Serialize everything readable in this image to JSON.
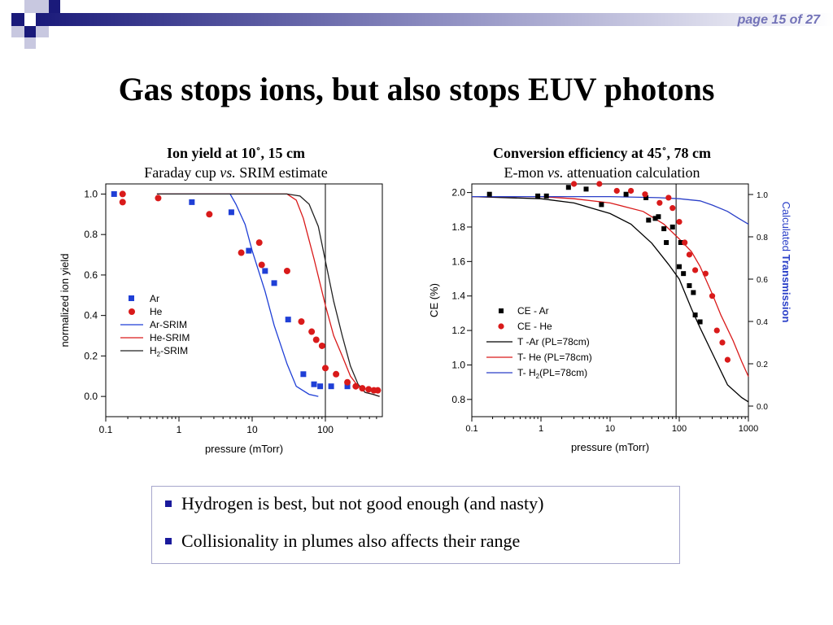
{
  "header": {
    "page_label": "page 15 of 27"
  },
  "title": "Gas stops ions, but also stops EUV photons",
  "left_caption": {
    "line1": "Ion yield at 10˚, 15 cm",
    "line2_a": "Faraday cup ",
    "line2_vs": "vs.",
    "line2_b": " SRIM estimate"
  },
  "right_caption": {
    "line1": "Conversion efficiency at 45˚, 78 cm",
    "line2_a": "E-mon ",
    "line2_vs": "vs.",
    "line2_b": " attenuation calculation"
  },
  "bullets": [
    "Hydrogen is best, but not good enough (and nasty)",
    "Collisionality in plumes also affects their range"
  ],
  "colors": {
    "ar": "#1f3fd6",
    "he": "#d91a1a",
    "h2": "#222222",
    "ar_he_marker_black": "#000000",
    "transmission": "#2a3fc8",
    "deco_dark": "#1a1a7a",
    "deco_light": "#a6a6cc"
  },
  "chart_data": [
    {
      "type": "scatter",
      "xlabel": "pressure (mTorr)",
      "ylabel": "normalized ion yield",
      "xscale": "log",
      "xlim": [
        0.1,
        600
      ],
      "ylim": [
        -0.1,
        1.05
      ],
      "xticks": [
        0.1,
        1,
        10,
        100
      ],
      "xticklabels": [
        "0.1",
        "1",
        "10",
        "100"
      ],
      "yticks": [
        0.0,
        0.2,
        0.4,
        0.6,
        0.8,
        1.0
      ],
      "yticklabels": [
        "0.0",
        "0.2",
        "0.4",
        "0.6",
        "0.8",
        "1.0"
      ],
      "vline": 100,
      "legend_position": "lower-left",
      "series": [
        {
          "name": "Ar",
          "kind": "square",
          "color": "#1f3fd6",
          "x": [
            0.13,
            1.5,
            5.2,
            9.0,
            15,
            20,
            31,
            50,
            70,
            85,
            120,
            200
          ],
          "y": [
            1.0,
            0.96,
            0.91,
            0.72,
            0.62,
            0.56,
            0.38,
            0.11,
            0.06,
            0.05,
            0.05,
            0.05
          ]
        },
        {
          "name": "He",
          "kind": "circle",
          "color": "#d91a1a",
          "x": [
            0.17,
            0.17,
            0.52,
            2.6,
            7.1,
            12.5,
            13.5,
            30,
            47,
            65,
            75,
            90,
            100,
            140,
            200,
            260,
            320,
            390,
            460,
            520
          ],
          "y": [
            1.0,
            0.96,
            0.98,
            0.9,
            0.71,
            0.76,
            0.65,
            0.62,
            0.37,
            0.32,
            0.28,
            0.25,
            0.14,
            0.11,
            0.07,
            0.05,
            0.04,
            0.035,
            0.03,
            0.03
          ]
        },
        {
          "name": "Ar-SRIM",
          "kind": "line",
          "color": "#1f3fd6",
          "x": [
            0.5,
            5,
            6,
            8,
            10,
            15,
            20,
            30,
            40,
            60,
            80
          ],
          "y": [
            1.0,
            1.0,
            0.95,
            0.85,
            0.72,
            0.52,
            0.35,
            0.16,
            0.05,
            0.01,
            0.0
          ]
        },
        {
          "name": "He-SRIM",
          "kind": "line",
          "color": "#d91a1a",
          "x": [
            0.5,
            30,
            40,
            50,
            70,
            100,
            130,
            170,
            220,
            280,
            350,
            450,
            550
          ],
          "y": [
            1.0,
            1.0,
            0.97,
            0.88,
            0.68,
            0.45,
            0.3,
            0.2,
            0.1,
            0.05,
            0.02,
            0.01,
            0.0
          ]
        },
        {
          "name": "H2-SRIM",
          "kind": "line",
          "color": "#222222",
          "x": [
            0.5,
            30,
            45,
            60,
            80,
            100,
            130,
            170,
            220,
            280,
            350,
            450,
            550
          ],
          "y": [
            1.0,
            1.0,
            0.99,
            0.95,
            0.84,
            0.67,
            0.47,
            0.3,
            0.15,
            0.06,
            0.02,
            0.01,
            0.0
          ]
        }
      ],
      "legend_labels": [
        "Ar",
        "He",
        "Ar-SRIM",
        "He-SRIM",
        "H",
        "2",
        "-SRIM"
      ]
    },
    {
      "type": "scatter",
      "xlabel": "pressure (mTorr)",
      "ylabel": "CE (%)",
      "y2label_a": "Calculated",
      "y2label_b": "Transmission",
      "xscale": "log",
      "xlim": [
        0.1,
        1000
      ],
      "ylim": [
        0.7,
        2.05
      ],
      "y2lim": [
        -0.05,
        1.05
      ],
      "xticks": [
        0.1,
        1,
        10,
        100,
        1000
      ],
      "xticklabels": [
        "0.1",
        "1",
        "10",
        "100",
        "1000"
      ],
      "yticks": [
        0.8,
        1.0,
        1.2,
        1.4,
        1.6,
        1.8,
        2.0
      ],
      "yticklabels": [
        "0.8",
        "1.0",
        "1.2",
        "1.4",
        "1.6",
        "1.8",
        "2.0"
      ],
      "y2ticks": [
        0.0,
        0.2,
        0.4,
        0.6,
        0.8,
        1.0
      ],
      "y2ticklabels": [
        "0.0",
        "0.2",
        "0.4",
        "0.6",
        "0.8",
        "1.0"
      ],
      "vline": 90,
      "legend_position": "lower-left",
      "series": [
        {
          "name": "CE - Ar",
          "kind": "square",
          "color": "#000000",
          "axis": "left",
          "x": [
            0.18,
            0.9,
            1.2,
            2.5,
            4.5,
            7.5,
            17,
            33,
            36,
            45,
            50,
            60,
            65,
            80,
            100,
            105,
            115,
            140,
            160,
            170,
            200
          ],
          "y": [
            1.99,
            1.98,
            1.98,
            2.03,
            2.02,
            1.93,
            1.99,
            1.97,
            1.84,
            1.85,
            1.86,
            1.79,
            1.71,
            1.8,
            1.57,
            1.71,
            1.53,
            1.46,
            1.42,
            1.29,
            1.25
          ]
        },
        {
          "name": "CE - He",
          "kind": "circle",
          "color": "#d91a1a",
          "axis": "left",
          "x": [
            3,
            7,
            12.5,
            20,
            32,
            52,
            70,
            80,
            100,
            120,
            140,
            170,
            240,
            300,
            350,
            420,
            500
          ],
          "y": [
            2.05,
            2.05,
            2.01,
            2.01,
            1.99,
            1.94,
            1.97,
            1.91,
            1.83,
            1.71,
            1.64,
            1.55,
            1.53,
            1.4,
            1.2,
            1.13,
            1.03
          ]
        },
        {
          "name": "T -Ar (PL=78cm)",
          "kind": "line",
          "color": "#000000",
          "axis": "right",
          "x": [
            0.1,
            1,
            3,
            10,
            20,
            40,
            70,
            100,
            150,
            200,
            300,
            500,
            800,
            1000
          ],
          "y": [
            0.99,
            0.98,
            0.96,
            0.91,
            0.86,
            0.77,
            0.67,
            0.6,
            0.46,
            0.37,
            0.25,
            0.1,
            0.04,
            0.02
          ]
        },
        {
          "name": "T- He (PL=78cm)",
          "kind": "line",
          "color": "#d91a1a",
          "axis": "right",
          "x": [
            0.1,
            1,
            3,
            10,
            30,
            60,
            100,
            150,
            200,
            300,
            400,
            600,
            800,
            1000
          ],
          "y": [
            0.99,
            0.99,
            0.98,
            0.96,
            0.92,
            0.86,
            0.79,
            0.73,
            0.66,
            0.53,
            0.43,
            0.31,
            0.21,
            0.14
          ]
        },
        {
          "name": "T- H",
          "name_sub": "2",
          "name_suffix": "(PL=78cm)",
          "kind": "line",
          "color": "#2a3fc8",
          "axis": "right",
          "x": [
            0.1,
            1,
            10,
            50,
            100,
            200,
            300,
            500,
            700,
            1000
          ],
          "y": [
            0.99,
            0.99,
            0.99,
            0.985,
            0.98,
            0.97,
            0.95,
            0.92,
            0.89,
            0.86
          ]
        }
      ]
    }
  ]
}
